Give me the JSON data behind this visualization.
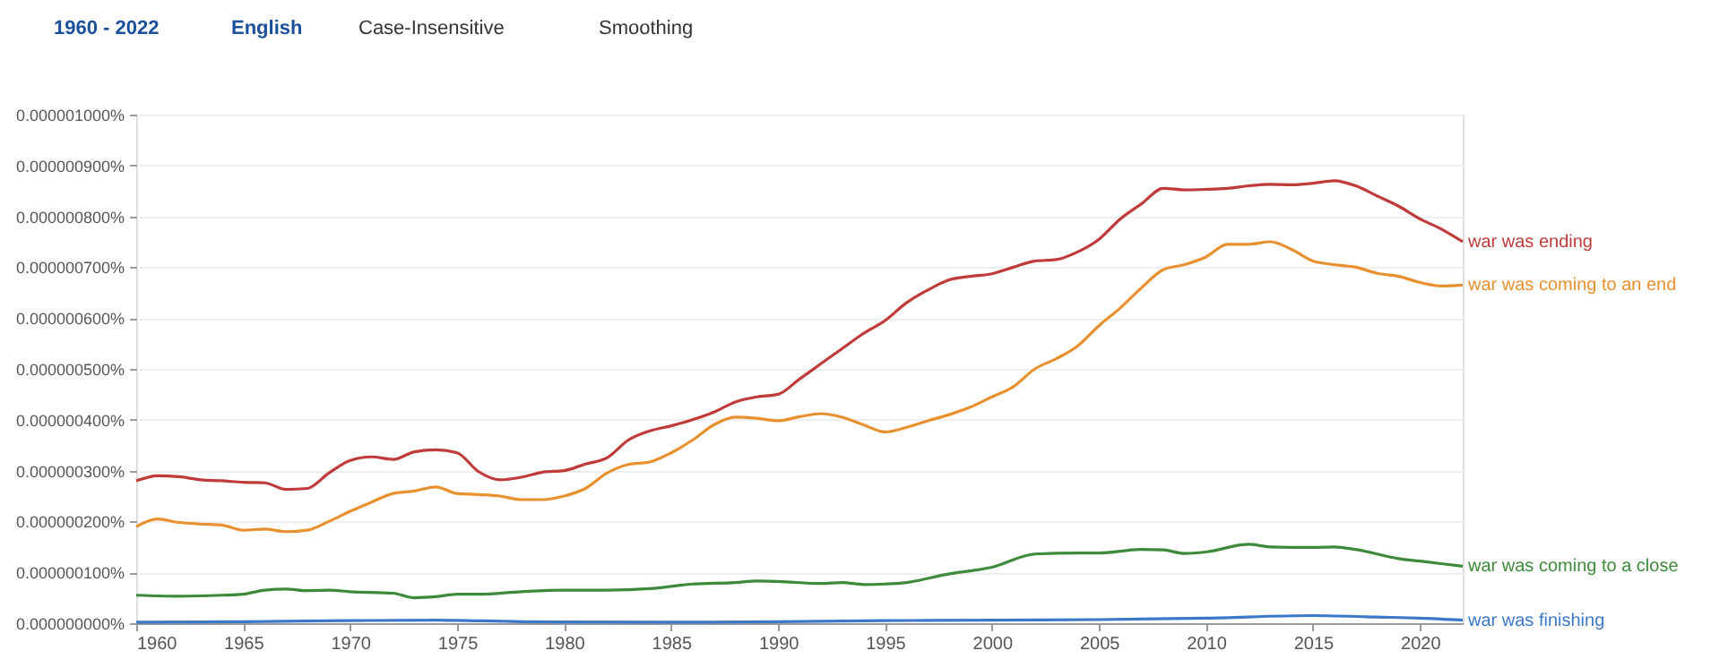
{
  "chart_data": {
    "type": "line",
    "annotations": [
      "1960 - 2022",
      "English",
      "Case-Insensitive",
      "Smoothing"
    ],
    "xlim": [
      1960,
      2022
    ],
    "xticks": [
      1960,
      1965,
      1970,
      1975,
      1980,
      1985,
      1990,
      1995,
      2000,
      2005,
      2010,
      2015,
      2020
    ],
    "ylim": [
      0,
      1e-06
    ],
    "yticks": [
      {
        "value": 0,
        "label": "0.000000000%"
      },
      {
        "value": 1e-07,
        "label": "0.000000100%"
      },
      {
        "value": 2e-07,
        "label": "0.000000200%"
      },
      {
        "value": 3e-07,
        "label": "0.000000300%"
      },
      {
        "value": 4e-07,
        "label": "0.000000400%"
      },
      {
        "value": 5e-07,
        "label": "0.000000500%"
      },
      {
        "value": 6e-07,
        "label": "0.000000600%"
      },
      {
        "value": 7e-07,
        "label": "0.000000700%"
      },
      {
        "value": 8e-07,
        "label": "0.000000800%"
      },
      {
        "value": 9e-07,
        "label": "0.000000900%"
      },
      {
        "value": 1e-06,
        "label": "0.000001000%"
      }
    ],
    "grid": "y",
    "marker": "none",
    "line_style": "solid",
    "series": [
      {
        "name": "war was ending",
        "color": "#c13a3a",
        "x": [
          1960,
          1961,
          1962,
          1963,
          1964,
          1965,
          1966,
          1967,
          1968,
          1969,
          1970,
          1971,
          1972,
          1973,
          1974,
          1975,
          1976,
          1977,
          1978,
          1979,
          1980,
          1981,
          1982,
          1983,
          1984,
          1985,
          1986,
          1987,
          1988,
          1989,
          1990,
          1991,
          1992,
          1993,
          1994,
          1995,
          1996,
          1997,
          1998,
          1999,
          2000,
          2001,
          2002,
          2003,
          2004,
          2005,
          2006,
          2007,
          2008,
          2009,
          2010,
          2011,
          2012,
          2013,
          2014,
          2015,
          2016,
          2017,
          2018,
          2019,
          2020,
          2021,
          2022
        ],
        "values": [
          2.8e-07,
          2.9e-07,
          2.88e-07,
          2.82e-07,
          2.8e-07,
          2.77e-07,
          2.76e-07,
          2.63e-07,
          2.65e-07,
          2.95e-07,
          3.2e-07,
          3.27e-07,
          3.22e-07,
          3.37e-07,
          3.41e-07,
          3.35e-07,
          2.98e-07,
          2.82e-07,
          2.87e-07,
          2.97e-07,
          3e-07,
          3.13e-07,
          3.25e-07,
          3.6e-07,
          3.78e-07,
          3.88e-07,
          4e-07,
          4.15e-07,
          4.35e-07,
          4.45e-07,
          4.5e-07,
          4.8e-07,
          5.1e-07,
          5.4e-07,
          5.7e-07,
          5.95e-07,
          6.3e-07,
          6.55e-07,
          6.75e-07,
          6.82e-07,
          6.87e-07,
          7e-07,
          7.12e-07,
          7.15e-07,
          7.3e-07,
          7.55e-07,
          7.95e-07,
          8.25e-07,
          8.55e-07,
          8.52e-07,
          8.53e-07,
          8.55e-07,
          8.6e-07,
          8.63e-07,
          8.62e-07,
          8.65e-07,
          8.7e-07,
          8.6e-07,
          8.4e-07,
          8.2e-07,
          7.95e-07,
          7.75e-07,
          7.5e-07
        ]
      },
      {
        "name": "war was coming to an end",
        "color": "#e8902e",
        "x": [
          1960,
          1961,
          1962,
          1963,
          1964,
          1965,
          1966,
          1967,
          1968,
          1969,
          1970,
          1971,
          1972,
          1973,
          1974,
          1975,
          1976,
          1977,
          1978,
          1979,
          1980,
          1981,
          1982,
          1983,
          1984,
          1985,
          1986,
          1987,
          1988,
          1989,
          1990,
          1991,
          1992,
          1993,
          1994,
          1995,
          1996,
          1997,
          1998,
          1999,
          2000,
          2001,
          2002,
          2003,
          2004,
          2005,
          2006,
          2007,
          2008,
          2009,
          2010,
          2011,
          2012,
          2013,
          2014,
          2015,
          2016,
          2017,
          2018,
          2019,
          2020,
          2021,
          2022
        ],
        "values": [
          1.9e-07,
          2.05e-07,
          1.98e-07,
          1.95e-07,
          1.93e-07,
          1.83e-07,
          1.85e-07,
          1.8e-07,
          1.83e-07,
          2e-07,
          2.2e-07,
          2.38e-07,
          2.55e-07,
          2.6e-07,
          2.68e-07,
          2.55e-07,
          2.53e-07,
          2.5e-07,
          2.43e-07,
          2.43e-07,
          2.5e-07,
          2.65e-07,
          2.95e-07,
          3.12e-07,
          3.17e-07,
          3.35e-07,
          3.6e-07,
          3.9e-07,
          4.05e-07,
          4.03e-07,
          3.98e-07,
          4.06e-07,
          4.12e-07,
          4.05e-07,
          3.9e-07,
          3.76e-07,
          3.85e-07,
          3.98e-07,
          4.1e-07,
          4.25e-07,
          4.45e-07,
          4.65e-07,
          5e-07,
          5.2e-07,
          5.45e-07,
          5.85e-07,
          6.2e-07,
          6.6e-07,
          6.95e-07,
          7.05e-07,
          7.2e-07,
          7.45e-07,
          7.45e-07,
          7.5e-07,
          7.35e-07,
          7.12e-07,
          7.05e-07,
          7e-07,
          6.88e-07,
          6.82e-07,
          6.7e-07,
          6.63e-07,
          6.65e-07
        ]
      },
      {
        "name": "war was coming to a close",
        "color": "#3c8a3a",
        "x": [
          1960,
          1962,
          1964,
          1965,
          1966,
          1967,
          1968,
          1969,
          1970,
          1972,
          1973,
          1974,
          1975,
          1976,
          1978,
          1980,
          1982,
          1984,
          1986,
          1988,
          1989,
          1990,
          1992,
          1993,
          1994,
          1995,
          1996,
          1998,
          2000,
          2002,
          2004,
          2005,
          2007,
          2008,
          2009,
          2010,
          2012,
          2013,
          2015,
          2016,
          2017,
          2019,
          2020,
          2022
        ],
        "values": [
          5.5e-08,
          5.3e-08,
          5.5e-08,
          5.7e-08,
          6.5e-08,
          6.7e-08,
          6.4e-08,
          6.5e-08,
          6.2e-08,
          5.9e-08,
          5e-08,
          5.2e-08,
          5.7e-08,
          5.7e-08,
          6.2e-08,
          6.5e-08,
          6.5e-08,
          6.8e-08,
          7.7e-08,
          8e-08,
          8.3e-08,
          8.2e-08,
          7.8e-08,
          8e-08,
          7.6e-08,
          7.7e-08,
          8e-08,
          9.7e-08,
          1.1e-07,
          1.36e-07,
          1.38e-07,
          1.38e-07,
          1.45e-07,
          1.44e-07,
          1.37e-07,
          1.4e-07,
          1.55e-07,
          1.5e-07,
          1.49e-07,
          1.5e-07,
          1.45e-07,
          1.27e-07,
          1.22e-07,
          1.12e-07
        ]
      },
      {
        "name": "war was finishing",
        "color": "#3b78c9",
        "x": [
          1960,
          1965,
          1970,
          1974,
          1978,
          1985,
          1990,
          1995,
          2000,
          2005,
          2010,
          2015,
          2018,
          2020,
          2022
        ],
        "values": [
          2e-09,
          3e-09,
          5e-09,
          6e-09,
          3e-09,
          2e-09,
          3e-09,
          5e-09,
          6e-09,
          7e-09,
          1e-08,
          1.5e-08,
          1.2e-08,
          1e-08,
          6e-09
        ]
      }
    ]
  }
}
